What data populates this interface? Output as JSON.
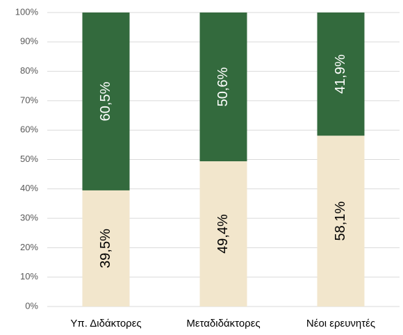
{
  "chart_data": {
    "type": "stacked_bar",
    "categories": [
      "Υπ. Διδάκτορες",
      "Μεταδιδάκτορες",
      "Νέοι ερευνητές"
    ],
    "series": [
      {
        "color": "#f2e6cc",
        "label_color": "#000000",
        "values": [
          39.5,
          49.4,
          58.1
        ],
        "value_labels": [
          "39,5%",
          "49,4%",
          "58,1%"
        ]
      },
      {
        "color": "#336a3d",
        "label_color": "#ffffff",
        "values": [
          60.5,
          50.6,
          41.9
        ],
        "value_labels": [
          "60,5%",
          "50,6%",
          "41,9%"
        ]
      }
    ],
    "ylim": [
      0,
      100
    ],
    "yticks": [
      {
        "value": 0,
        "label": "0%"
      },
      {
        "value": 10,
        "label": "10%"
      },
      {
        "value": 20,
        "label": "20%"
      },
      {
        "value": 30,
        "label": "30%"
      },
      {
        "value": 40,
        "label": "40%"
      },
      {
        "value": 50,
        "label": "50%"
      },
      {
        "value": 60,
        "label": "60%"
      },
      {
        "value": 70,
        "label": "70%"
      },
      {
        "value": 80,
        "label": "80%"
      },
      {
        "value": 90,
        "label": "90%"
      },
      {
        "value": 100,
        "label": "100%"
      }
    ],
    "grid": true
  }
}
